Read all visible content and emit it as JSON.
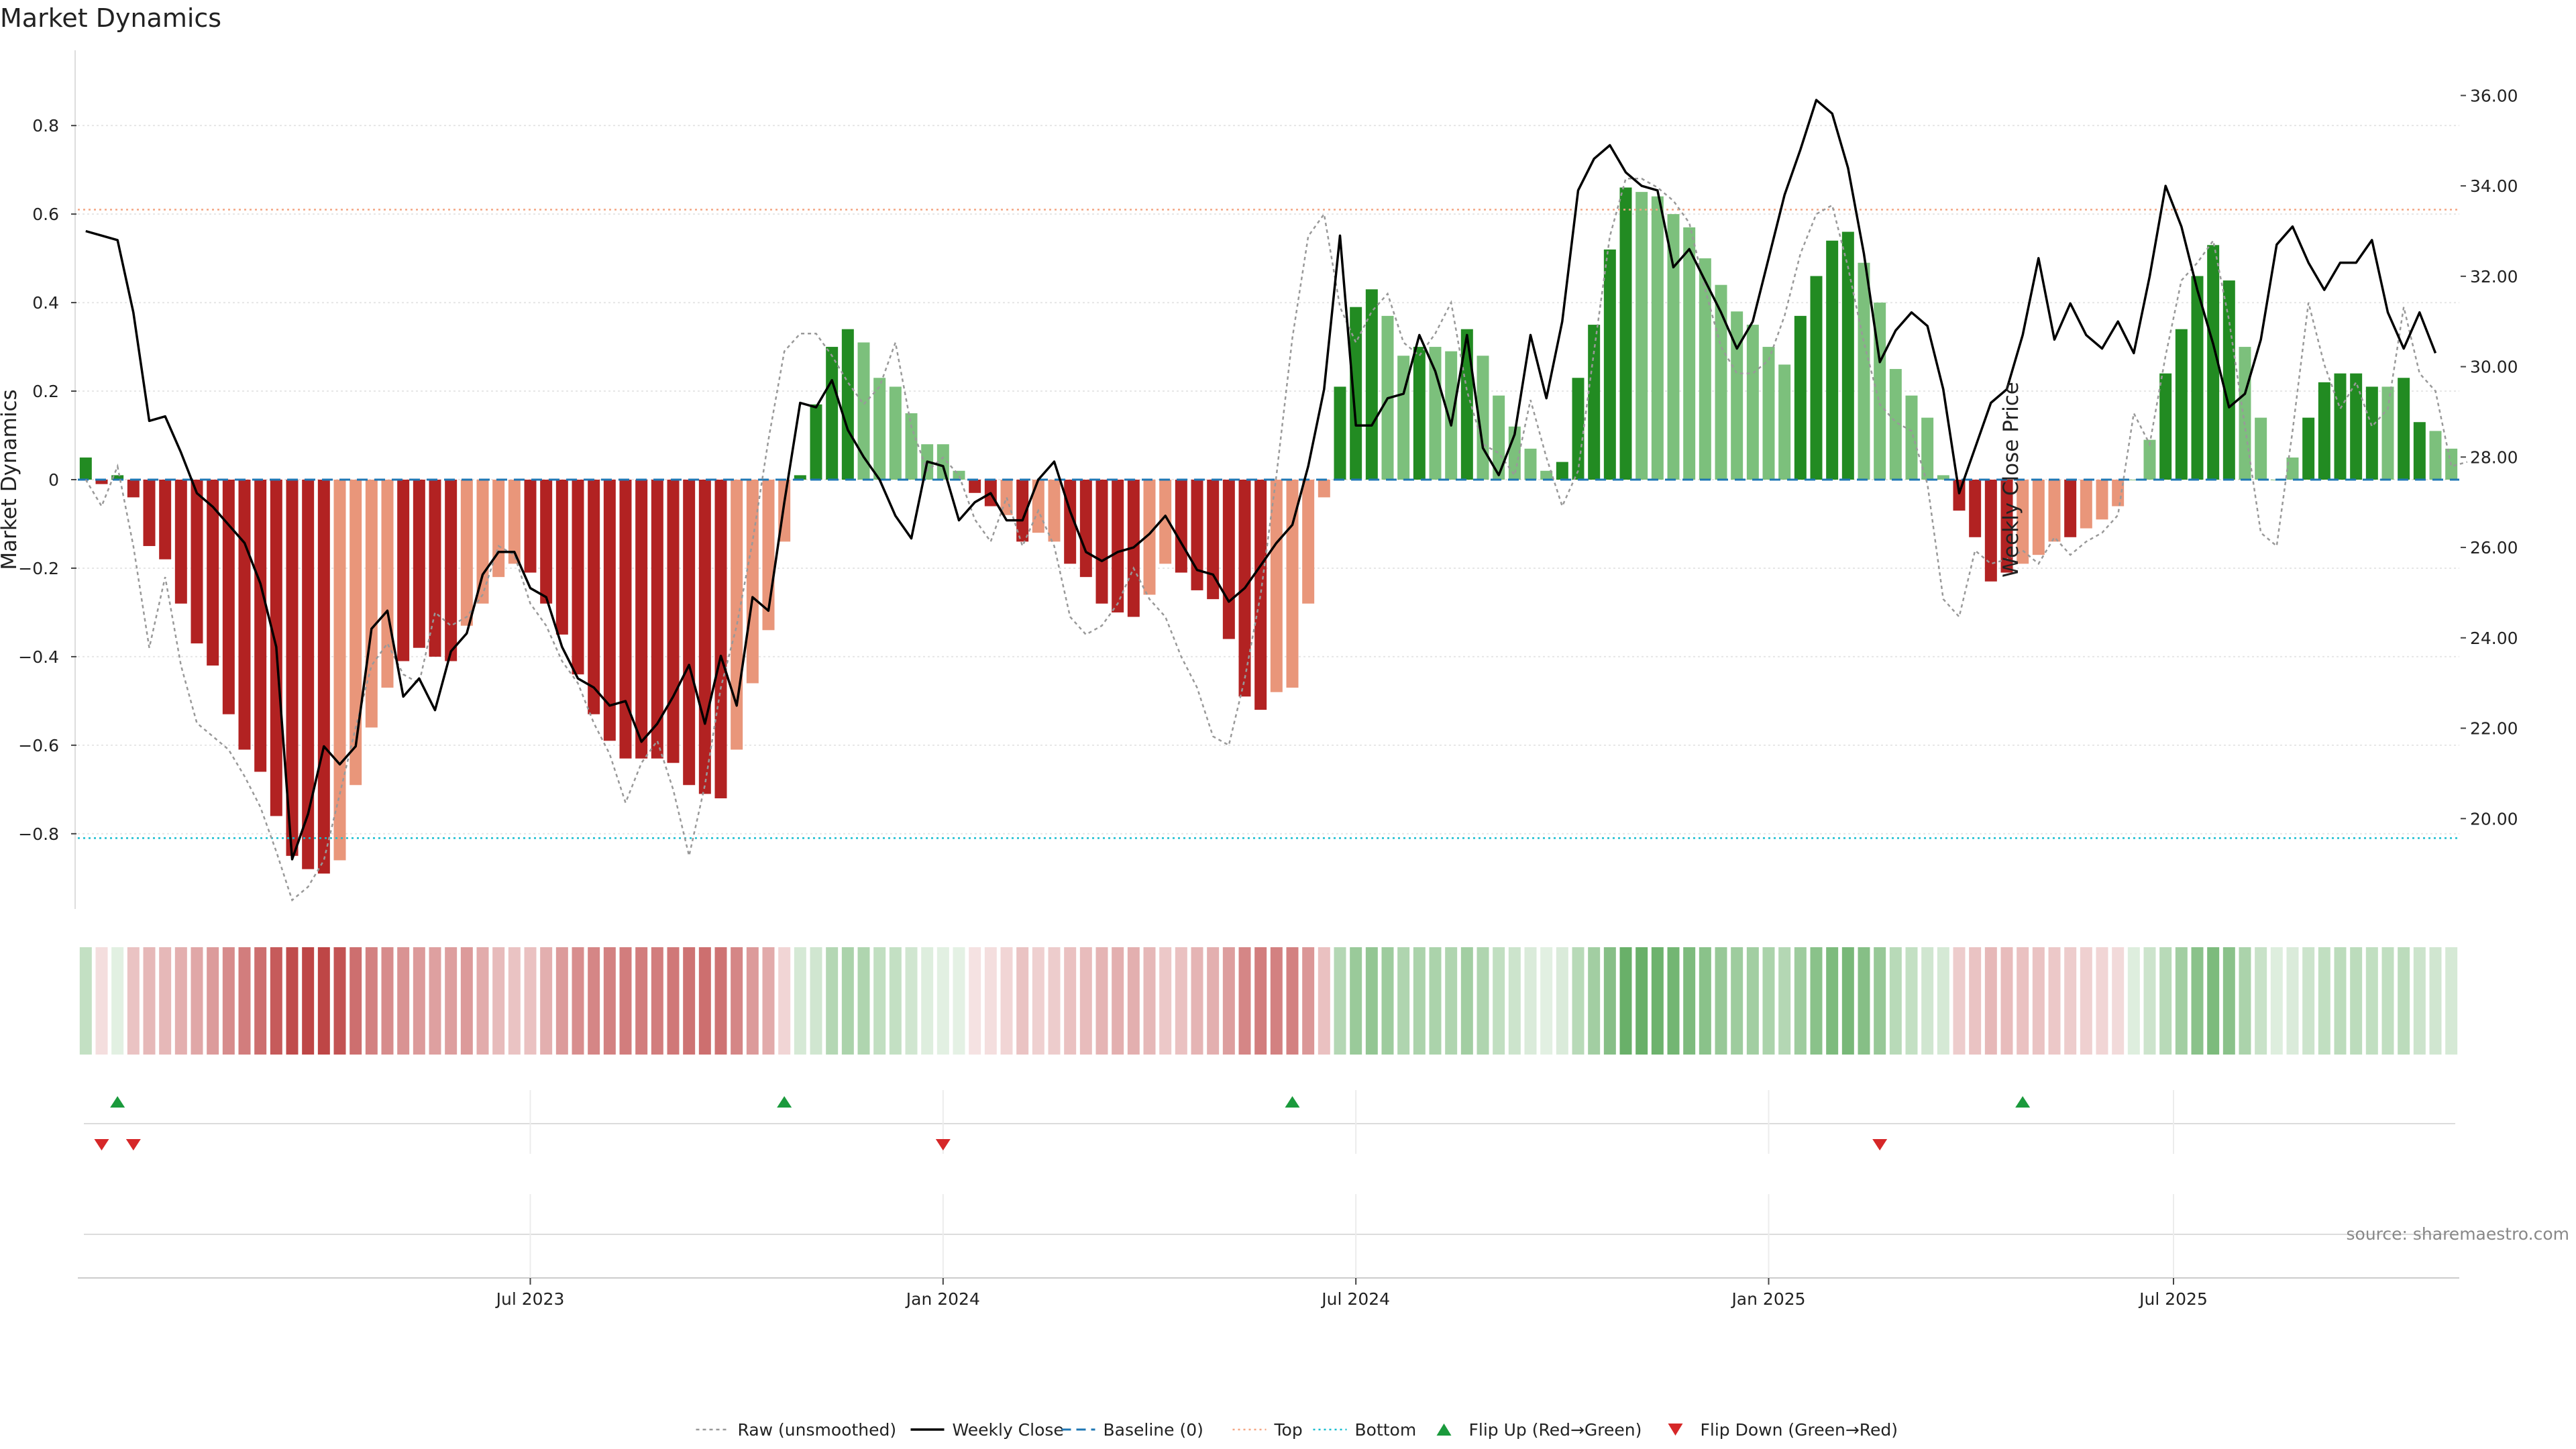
{
  "title": "Market Dynamics",
  "source": "source: sharemaestro.com",
  "colors": {
    "strong_green": "#228B22",
    "light_green": "#7CC07C",
    "strong_red": "#B22222",
    "light_red": "#E9967A",
    "raw_line": "#999999",
    "close_line": "#000000",
    "baseline": "#1f77b4",
    "top_line": "#f4a582",
    "bottom_line": "#17becf",
    "flip_up": "#1a9a3c",
    "flip_down": "#d62728"
  },
  "chart_data": {
    "type": "bar",
    "ylabel_left": "Market Dynamics",
    "ylabel_right": "Weekly Close Price",
    "ylim_left": [
      -0.97,
      0.97
    ],
    "ylim_right": [
      18.0,
      37.0
    ],
    "yticks_left": [
      "0.8",
      "0.6",
      "0.4",
      "0.2",
      "0",
      "−0.2",
      "−0.4",
      "−0.6",
      "−0.8"
    ],
    "yticks_right": [
      "36.00",
      "34.00",
      "32.00",
      "30.00",
      "28.00",
      "26.00",
      "24.00",
      "22.00",
      "20.00"
    ],
    "xticks": [
      "Jul 2023",
      "Jan 2024",
      "Jul 2024",
      "Jan 2025",
      "Jul 2025"
    ],
    "xtick_week_index": [
      28.5,
      54.5,
      80.5,
      106.5,
      132
    ],
    "top_level": 0.61,
    "bottom_level": -0.81,
    "baseline": 0,
    "dynamics": [
      0.05,
      -0.01,
      0.01,
      -0.04,
      -0.15,
      -0.18,
      -0.28,
      -0.37,
      -0.42,
      -0.53,
      -0.61,
      -0.66,
      -0.76,
      -0.85,
      -0.88,
      -0.89,
      -0.86,
      -0.69,
      -0.56,
      -0.47,
      -0.41,
      -0.38,
      -0.4,
      -0.41,
      -0.33,
      -0.28,
      -0.22,
      -0.19,
      -0.21,
      -0.28,
      -0.35,
      -0.44,
      -0.53,
      -0.59,
      -0.63,
      -0.63,
      -0.63,
      -0.64,
      -0.69,
      -0.71,
      -0.72,
      -0.61,
      -0.46,
      -0.34,
      -0.14,
      0.01,
      0.17,
      0.3,
      0.34,
      0.31,
      0.23,
      0.21,
      0.15,
      0.08,
      0.08,
      0.02,
      -0.03,
      -0.06,
      -0.08,
      -0.14,
      -0.12,
      -0.14,
      -0.19,
      -0.22,
      -0.28,
      -0.3,
      -0.31,
      -0.26,
      -0.19,
      -0.21,
      -0.25,
      -0.27,
      -0.36,
      -0.49,
      -0.52,
      -0.48,
      -0.47,
      -0.28,
      -0.04,
      0.21,
      0.39,
      0.43,
      0.37,
      0.28,
      0.3,
      0.3,
      0.29,
      0.34,
      0.28,
      0.19,
      0.12,
      0.07,
      0.02,
      0.04,
      0.23,
      0.35,
      0.52,
      0.66,
      0.65,
      0.64,
      0.6,
      0.57,
      0.5,
      0.44,
      0.38,
      0.35,
      0.3,
      0.26,
      0.37,
      0.46,
      0.54,
      0.56,
      0.49,
      0.4,
      0.25,
      0.19,
      0.14,
      0.01,
      -0.07,
      -0.13,
      -0.23,
      -0.21,
      -0.19,
      -0.17,
      -0.14,
      -0.13,
      -0.11,
      -0.09,
      -0.06,
      0.0,
      0.09,
      0.24,
      0.34,
      0.46,
      0.53,
      0.45,
      0.3,
      0.14,
      0.0,
      0.05,
      0.14,
      0.22,
      0.24,
      0.24,
      0.21,
      0.21,
      0.23,
      0.13,
      0.11,
      0.07
    ],
    "strong_flags": [
      1,
      1,
      1,
      1,
      1,
      1,
      1,
      1,
      1,
      1,
      1,
      1,
      1,
      1,
      1,
      1,
      0,
      0,
      0,
      0,
      1,
      1,
      1,
      1,
      0,
      0,
      0,
      0,
      1,
      1,
      1,
      1,
      1,
      1,
      1,
      1,
      1,
      1,
      1,
      1,
      1,
      0,
      0,
      0,
      0,
      1,
      1,
      1,
      1,
      0,
      0,
      0,
      0,
      0,
      0,
      0,
      1,
      1,
      0,
      1,
      0,
      0,
      1,
      1,
      1,
      1,
      1,
      0,
      0,
      1,
      1,
      1,
      1,
      1,
      1,
      0,
      0,
      0,
      0,
      1,
      1,
      1,
      0,
      0,
      1,
      0,
      0,
      1,
      0,
      0,
      0,
      0,
      0,
      1,
      1,
      1,
      1,
      1,
      0,
      0,
      0,
      0,
      0,
      0,
      0,
      0,
      0,
      0,
      1,
      1,
      1,
      1,
      0,
      0,
      0,
      0,
      0,
      0,
      1,
      1,
      1,
      1,
      0,
      0,
      0,
      1,
      0,
      0,
      0,
      0,
      0,
      1,
      1,
      1,
      1,
      1,
      0,
      0,
      0,
      0,
      1,
      1,
      1,
      1,
      1,
      0,
      1,
      1,
      0,
      0,
      0
    ],
    "raw_dynamics": [
      0.0,
      -0.06,
      0.03,
      -0.15,
      -0.38,
      -0.22,
      -0.42,
      -0.55,
      -0.58,
      -0.61,
      -0.67,
      -0.74,
      -0.84,
      -0.95,
      -0.92,
      -0.86,
      -0.71,
      -0.56,
      -0.42,
      -0.37,
      -0.44,
      -0.46,
      -0.3,
      -0.33,
      -0.31,
      -0.26,
      -0.15,
      -0.17,
      -0.28,
      -0.33,
      -0.41,
      -0.46,
      -0.55,
      -0.62,
      -0.73,
      -0.64,
      -0.59,
      -0.7,
      -0.85,
      -0.69,
      -0.47,
      -0.33,
      -0.14,
      0.09,
      0.29,
      0.33,
      0.33,
      0.28,
      0.22,
      0.17,
      0.21,
      0.31,
      0.12,
      0.02,
      0.05,
      0.01,
      -0.09,
      -0.14,
      -0.04,
      -0.15,
      -0.07,
      -0.15,
      -0.31,
      -0.35,
      -0.33,
      -0.28,
      -0.2,
      -0.27,
      -0.31,
      -0.4,
      -0.47,
      -0.58,
      -0.6,
      -0.45,
      -0.26,
      0.01,
      0.32,
      0.55,
      0.6,
      0.39,
      0.31,
      0.38,
      0.42,
      0.31,
      0.28,
      0.33,
      0.4,
      0.2,
      0.08,
      0.06,
      0.01,
      0.18,
      0.05,
      -0.06,
      0.02,
      0.29,
      0.55,
      0.68,
      0.68,
      0.66,
      0.63,
      0.58,
      0.43,
      0.3,
      0.24,
      0.24,
      0.27,
      0.37,
      0.51,
      0.6,
      0.62,
      0.48,
      0.31,
      0.17,
      0.13,
      0.11,
      -0.01,
      -0.27,
      -0.31,
      -0.16,
      -0.19,
      -0.18,
      -0.16,
      -0.19,
      -0.13,
      -0.17,
      -0.14,
      -0.12,
      -0.08,
      0.15,
      0.08,
      0.28,
      0.45,
      0.49,
      0.54,
      0.36,
      0.12,
      -0.12,
      -0.15,
      0.11,
      0.4,
      0.26,
      0.16,
      0.22,
      0.12,
      0.16,
      0.39,
      0.24,
      0.2,
      0.03,
      0.04
    ],
    "weekly_close": [
      33.0,
      32.9,
      32.8,
      31.2,
      28.8,
      28.9,
      28.1,
      27.2,
      26.9,
      26.5,
      26.1,
      25.2,
      23.8,
      19.1,
      20.1,
      21.6,
      21.2,
      21.6,
      24.2,
      24.6,
      22.7,
      23.1,
      22.4,
      23.7,
      24.1,
      25.4,
      25.9,
      25.9,
      25.1,
      24.9,
      23.8,
      23.1,
      22.9,
      22.5,
      22.6,
      21.7,
      22.1,
      22.7,
      23.4,
      22.1,
      23.6,
      22.5,
      24.9,
      24.6,
      27.0,
      29.2,
      29.1,
      29.7,
      28.6,
      28.0,
      27.5,
      26.7,
      26.2,
      27.9,
      27.8,
      26.6,
      27.0,
      27.2,
      26.6,
      26.6,
      27.5,
      27.9,
      26.8,
      25.9,
      25.7,
      25.9,
      26.0,
      26.3,
      26.7,
      26.1,
      25.5,
      25.4,
      24.8,
      25.1,
      25.6,
      26.1,
      26.5,
      27.8,
      29.5,
      32.9,
      28.7,
      28.7,
      29.3,
      29.4,
      30.7,
      29.9,
      28.7,
      30.7,
      28.2,
      27.6,
      28.5,
      30.7,
      29.3,
      31.0,
      33.9,
      34.6,
      34.9,
      34.3,
      34.0,
      33.9,
      32.2,
      32.6,
      31.9,
      31.2,
      30.4,
      31.0,
      32.4,
      33.8,
      34.8,
      35.9,
      35.6,
      34.4,
      32.5,
      30.1,
      30.8,
      31.2,
      30.9,
      29.5,
      27.2,
      28.2,
      29.2,
      29.5,
      30.7,
      32.4,
      30.6,
      31.4,
      30.7,
      30.4,
      31.0,
      30.3,
      32.0,
      34.0,
      33.1,
      31.7,
      30.5,
      29.1,
      29.4,
      30.6,
      32.7,
      33.1,
      32.3,
      31.7,
      32.3,
      32.3,
      32.8,
      31.2,
      30.4,
      31.2,
      30.3
    ],
    "strength_strip": [
      0.28,
      0.16,
      0.14,
      0.28,
      0.34,
      0.34,
      0.38,
      0.42,
      0.47,
      0.55,
      0.62,
      0.68,
      0.78,
      0.85,
      0.88,
      0.88,
      0.82,
      0.68,
      0.6,
      0.55,
      0.52,
      0.48,
      0.45,
      0.46,
      0.48,
      0.4,
      0.33,
      0.28,
      0.3,
      0.38,
      0.47,
      0.54,
      0.58,
      0.6,
      0.62,
      0.62,
      0.62,
      0.64,
      0.66,
      0.68,
      0.66,
      0.58,
      0.48,
      0.4,
      0.2,
      0.2,
      0.22,
      0.36,
      0.4,
      0.38,
      0.3,
      0.28,
      0.22,
      0.16,
      0.14,
      0.12,
      0.14,
      0.16,
      0.2,
      0.28,
      0.22,
      0.24,
      0.3,
      0.32,
      0.36,
      0.38,
      0.38,
      0.34,
      0.26,
      0.3,
      0.36,
      0.38,
      0.46,
      0.58,
      0.62,
      0.6,
      0.6,
      0.5,
      0.3,
      0.36,
      0.48,
      0.52,
      0.46,
      0.38,
      0.4,
      0.4,
      0.38,
      0.44,
      0.38,
      0.3,
      0.24,
      0.18,
      0.14,
      0.18,
      0.34,
      0.44,
      0.58,
      0.72,
      0.72,
      0.7,
      0.66,
      0.62,
      0.56,
      0.5,
      0.46,
      0.44,
      0.4,
      0.36,
      0.46,
      0.56,
      0.62,
      0.64,
      0.58,
      0.5,
      0.34,
      0.28,
      0.22,
      0.2,
      0.24,
      0.28,
      0.34,
      0.32,
      0.3,
      0.28,
      0.26,
      0.24,
      0.22,
      0.2,
      0.18,
      0.16,
      0.24,
      0.34,
      0.44,
      0.56,
      0.62,
      0.56,
      0.4,
      0.26,
      0.16,
      0.18,
      0.24,
      0.3,
      0.32,
      0.32,
      0.3,
      0.3,
      0.32,
      0.24,
      0.22,
      0.2
    ],
    "flip_up_weeks": [
      2,
      44,
      76,
      122
    ],
    "flip_down_weeks": [
      1,
      3,
      54,
      113
    ],
    "legend": [
      {
        "label": "Raw (unsmoothed)",
        "style": "dotted-gray"
      },
      {
        "label": "Weekly Close",
        "style": "solid-black"
      },
      {
        "label": "Baseline (0)",
        "style": "dashed-blue"
      },
      {
        "label": "Top",
        "style": "dotted-salmon"
      },
      {
        "label": "Bottom",
        "style": "dotted-cyan"
      },
      {
        "label": "Flip Up (Red→Green)",
        "style": "triangle-up-green"
      },
      {
        "label": "Flip Down (Green→Red)",
        "style": "triangle-down-red"
      }
    ]
  }
}
